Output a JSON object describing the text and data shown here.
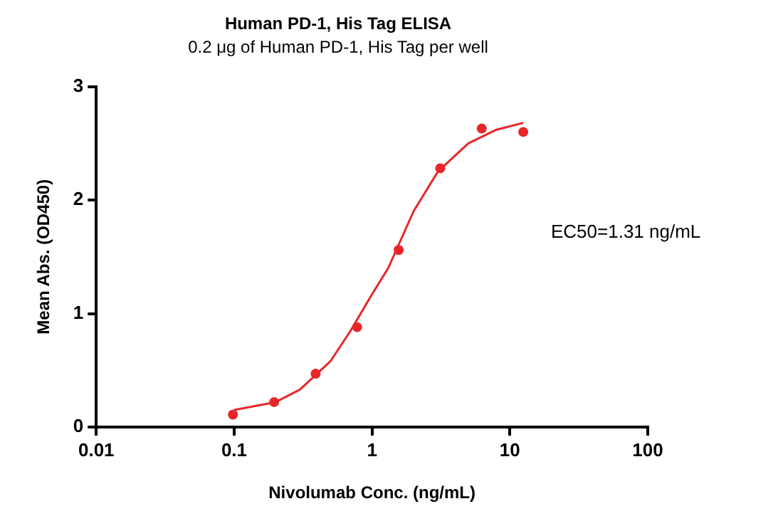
{
  "chart_data": {
    "type": "scatter",
    "title": "Human PD-1, His Tag ELISA",
    "subtitle": "0.2 μg of Human PD-1, His Tag per well",
    "xlabel": "Nivolumab Conc. (ng/mL)",
    "ylabel": "Mean Abs. (OD450)",
    "log": "x",
    "xlim": [
      0.01,
      100
    ],
    "xticks": [
      0.01,
      0.1,
      1,
      10,
      100
    ],
    "ylim": [
      0,
      3
    ],
    "yticks": [
      0,
      1,
      2,
      3
    ],
    "grid": false,
    "legend": false,
    "marker": "circle",
    "annotations": [
      "EC50=1.31 ng/mL"
    ],
    "series": [
      {
        "color": "#e8262a",
        "x": [
          0.098,
          0.195,
          0.39,
          0.78,
          1.56,
          3.125,
          6.25,
          12.5
        ],
        "values": [
          0.11,
          0.22,
          0.47,
          0.88,
          1.56,
          2.28,
          2.63,
          2.6
        ]
      },
      {
        "type": "line",
        "color": "#e8262a",
        "marker": "none",
        "line_style": "solid",
        "x": [
          0.1,
          0.2,
          0.3,
          0.5,
          0.7,
          1,
          1.31,
          2,
          3,
          5,
          8,
          12.5
        ],
        "values": [
          0.15,
          0.22,
          0.33,
          0.58,
          0.85,
          1.17,
          1.4,
          1.9,
          2.25,
          2.5,
          2.62,
          2.68
        ]
      }
    ]
  }
}
